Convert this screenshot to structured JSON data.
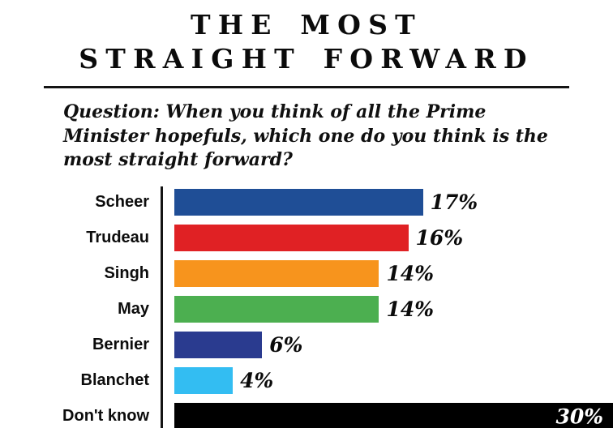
{
  "title": {
    "line1": "THE MOST",
    "line2": "STRAIGHT FORWARD"
  },
  "question": "Question: When you think of all the Prime Minister hopefuls, which one do you think is the most straight forward?",
  "chart_data": {
    "type": "bar",
    "orientation": "horizontal",
    "title": "THE MOST STRAIGHT FORWARD",
    "categories": [
      "Scheer",
      "Trudeau",
      "Singh",
      "May",
      "Bernier",
      "Blanchet",
      "Don't know"
    ],
    "values": [
      17,
      16,
      14,
      14,
      6,
      4,
      30
    ],
    "value_labels": [
      "17%",
      "16%",
      "14%",
      "14%",
      "6%",
      "4%",
      "30%"
    ],
    "colors": [
      "#1f4e96",
      "#e02124",
      "#f7941d",
      "#4caf50",
      "#2a3b8f",
      "#33bdf2",
      "#000000"
    ],
    "label_inside": [
      false,
      false,
      false,
      false,
      false,
      false,
      true
    ],
    "xlim": [
      0,
      30
    ],
    "grid": false,
    "legend": "none"
  }
}
